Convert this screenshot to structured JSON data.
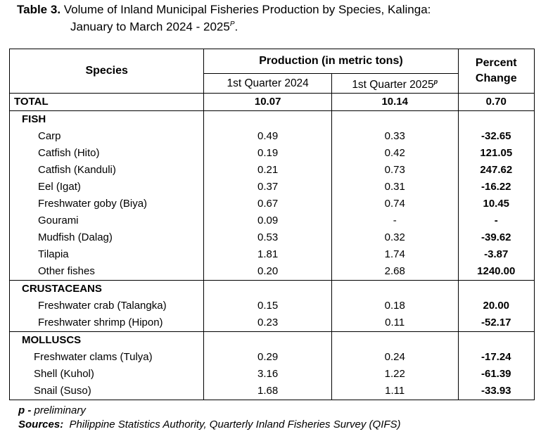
{
  "title": {
    "label": "Table 3.",
    "line1": " Volume of Inland Municipal Fisheries Production by Species, Kalinga:",
    "line2": "January to March 2024 - 2025",
    "line2_sup": "P",
    "line2_end": "."
  },
  "table": {
    "headers": {
      "species": "Species",
      "production": "Production (in metric tons)",
      "q1_2024": "1st Quarter 2024",
      "q1_2025": "1st Quarter 2025",
      "q1_2025_sup": "p",
      "percent_change_1": "Percent",
      "percent_change_2": "Change"
    },
    "total": {
      "name": "TOTAL",
      "q2024": "10.07",
      "q2025": "10.14",
      "pct": "0.70"
    },
    "fish": {
      "name": "FISH",
      "rows": [
        {
          "name": "Carp",
          "q2024": "0.49",
          "q2025": "0.33",
          "pct": "-32.65"
        },
        {
          "name": "Catfish (Hito)",
          "q2024": "0.19",
          "q2025": "0.42",
          "pct": "121.05"
        },
        {
          "name": "Catfish (Kanduli)",
          "q2024": "0.21",
          "q2025": "0.73",
          "pct": "247.62"
        },
        {
          "name": "Eel (Igat)",
          "q2024": "0.37",
          "q2025": "0.31",
          "pct": "-16.22"
        },
        {
          "name": "Freshwater goby (Biya)",
          "q2024": "0.67",
          "q2025": "0.74",
          "pct": "10.45"
        },
        {
          "name": "Gourami",
          "q2024": "0.09",
          "q2025": "-",
          "pct": "-"
        },
        {
          "name": "Mudfish (Dalag)",
          "q2024": "0.53",
          "q2025": "0.32",
          "pct": "-39.62"
        },
        {
          "name": "Tilapia",
          "q2024": "1.81",
          "q2025": "1.74",
          "pct": "-3.87"
        },
        {
          "name": "Other fishes",
          "q2024": "0.20",
          "q2025": "2.68",
          "pct": "1240.00"
        }
      ]
    },
    "crustaceans": {
      "name": "CRUSTACEANS",
      "rows": [
        {
          "name": "Freshwater crab (Talangka)",
          "q2024": "0.15",
          "q2025": "0.18",
          "pct": "20.00"
        },
        {
          "name": "Freshwater shrimp (Hipon)",
          "q2024": "0.23",
          "q2025": "0.11",
          "pct": "-52.17"
        }
      ]
    },
    "molluscs": {
      "name": "MOLLUSCS",
      "rows": [
        {
          "name": "Freshwater clams (Tulya)",
          "q2024": "0.29",
          "q2025": "0.24",
          "pct": "-17.24"
        },
        {
          "name": "Shell (Kuhol)",
          "q2024": "3.16",
          "q2025": "1.22",
          "pct": "-61.39"
        },
        {
          "name": "Snail (Suso)",
          "q2024": "1.68",
          "q2025": "1.11",
          "pct": "-33.93"
        }
      ]
    }
  },
  "notes": {
    "prelim_key": "p - ",
    "prelim_text": "preliminary",
    "sources_key": "Sources:",
    "sources_text": "  Philippine Statistics Authority, Quarterly Inland Fisheries Survey (QIFS)"
  }
}
